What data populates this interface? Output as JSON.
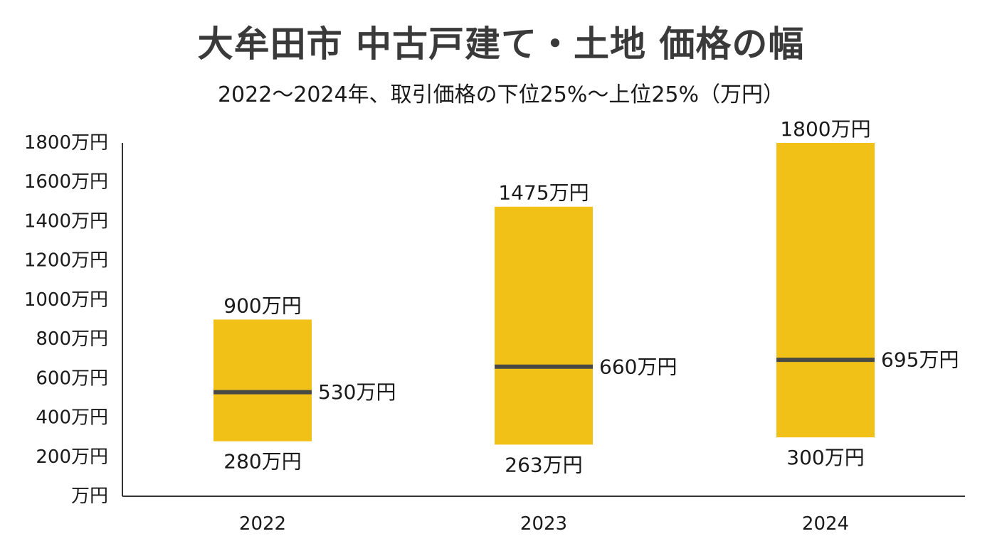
{
  "header": {
    "title": "大牟田市 中古戸建て・土地 価格の幅",
    "subtitle": "2022〜2024年、取引価格の下位25%〜上位25%（万円）"
  },
  "colors": {
    "bar": "#F2C118",
    "median_line": "#4a4a45",
    "axis": "#333333",
    "title": "#3a3a3a"
  },
  "chart_data": {
    "type": "bar",
    "subtype": "floating-range",
    "title": "大牟田市 中古戸建て・土地 価格の幅",
    "subtitle": "2022〜2024年、取引価格の下位25%〜上位25%（万円）",
    "categories": [
      "2022",
      "2023",
      "2024"
    ],
    "low": [
      280,
      263,
      300
    ],
    "high": [
      900,
      1475,
      1800
    ],
    "median": [
      530,
      660,
      695
    ],
    "low_labels": [
      "280万円",
      "263万円",
      "300万円"
    ],
    "high_labels": [
      "900万円",
      "1475万円",
      "1800万円"
    ],
    "median_labels": [
      "530万円",
      "660万円",
      "695万円"
    ],
    "ylim": [
      0,
      1800
    ],
    "yticks": [
      0,
      200,
      400,
      600,
      800,
      1000,
      1200,
      1400,
      1600,
      1800
    ],
    "ytick_labels": [
      "万円",
      "200万円",
      "400万円",
      "600万円",
      "800万円",
      "1000万円",
      "1200万円",
      "1400万円",
      "1600万円",
      "1800万円"
    ],
    "grid": false,
    "legend": "none"
  }
}
